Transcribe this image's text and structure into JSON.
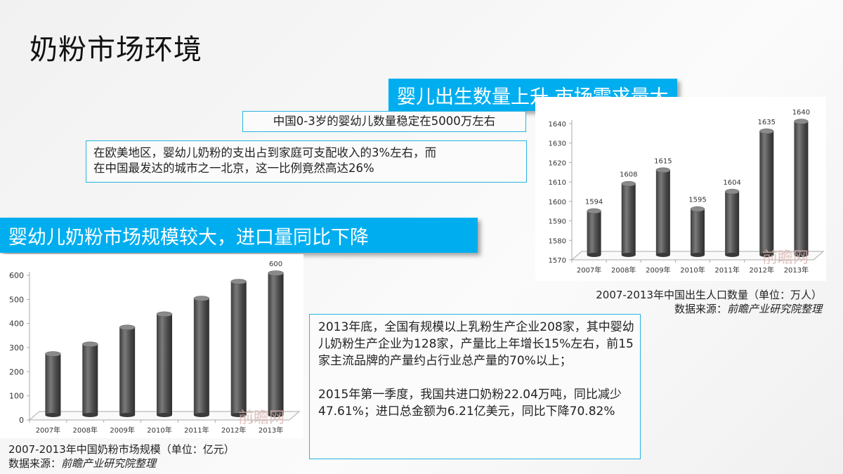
{
  "slide": {
    "title": "奶粉市场环境",
    "banner_top": "婴儿出生数量上升,市场需求量大",
    "banner_bottom": "婴幼儿奶粉市场规模较大，进口量同比下降",
    "box_infants": "中国0-3岁的婴幼儿数量稳定在5000万左右",
    "box_spending_line1": "在欧美地区，婴幼儿奶粉的支出占到家庭可支配收入的3%左右，而",
    "box_spending_line2": "在中国最发达的城市之一北京，这一比例竟然高达26%",
    "box_industry_p1": "2013年底，全国有规模以上乳粉生产企业208家，其中婴幼儿奶粉生产企业为128家，产量比上年增长15%左右，前15家主流品牌的产量约占行业总产量的70%以上；",
    "box_industry_p2": "2015年第一季度，我国共进口奶粉22.04万吨，同比减少47.61%；进口总金额为6.21亿美元，同比下降70.82%",
    "caption_births": "2007-2013年中国出生人口数量（单位：万人）",
    "caption_market": "2007-2013年中国奶粉市场规模（单位：亿元）",
    "source_label": "数据来源：",
    "source_name": "前瞻产业研究院整理",
    "watermark": "前瞻网",
    "bar_color": "#555555",
    "accent_color": "#00aeef"
  },
  "chart_data": [
    {
      "type": "bar",
      "title": "2007-2013年中国出生人口数量（单位：万人）",
      "categories": [
        "2007年",
        "2008年",
        "2009年",
        "2010年",
        "2011年",
        "2012年",
        "2013年"
      ],
      "values": [
        1594,
        1608,
        1615,
        1595,
        1604,
        1635,
        1640
      ],
      "data_labels": [
        "1594",
        "1608",
        "1615",
        "1595",
        "1604",
        "1635",
        "1640"
      ],
      "yticks": [
        1570,
        1580,
        1590,
        1600,
        1610,
        1620,
        1630,
        1640
      ],
      "ylim": [
        1570,
        1640
      ],
      "xlabel": "",
      "ylabel": "",
      "grid": false,
      "legend": "none",
      "style": "3d-cylinder"
    },
    {
      "type": "bar",
      "title": "2007-2013年中国奶粉市场规模（单位：亿元）",
      "categories": [
        "2007年",
        "2008年",
        "2009年",
        "2010年",
        "2011年",
        "2012年",
        "2013年"
      ],
      "values": [
        265,
        305,
        375,
        430,
        495,
        565,
        600
      ],
      "data_labels": [
        "",
        "",
        "",
        "",
        "",
        "",
        "600"
      ],
      "yticks": [
        0,
        100,
        200,
        300,
        400,
        500,
        600
      ],
      "ylim": [
        0,
        600
      ],
      "xlabel": "",
      "ylabel": "",
      "grid": false,
      "legend": "none",
      "style": "3d-cylinder"
    }
  ]
}
